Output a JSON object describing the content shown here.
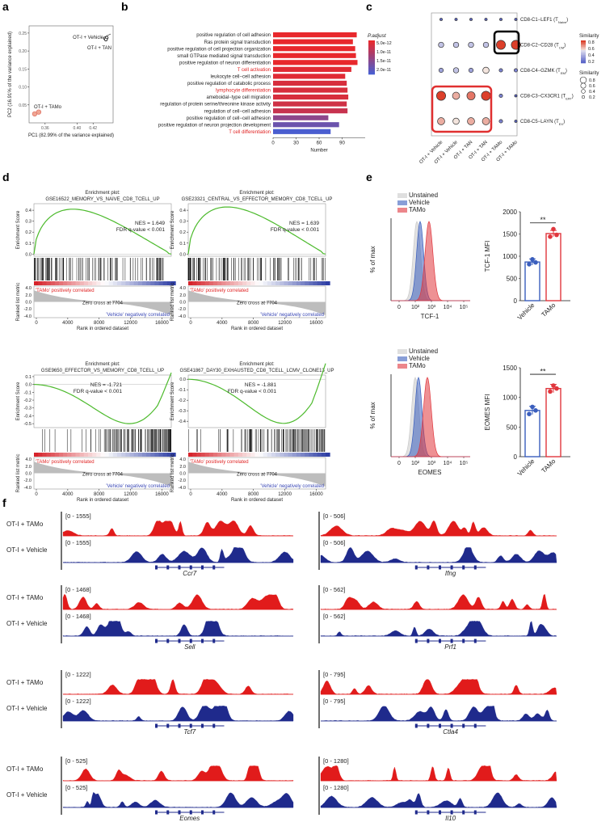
{
  "panel_labels": {
    "a": "a",
    "b": "b",
    "c": "c",
    "d": "d",
    "e": "e",
    "f": "f"
  },
  "chart_data": [
    {
      "panel": "a",
      "type": "scatter",
      "xlabel": "PC1 (82.99% of the variance explained)",
      "ylabel": "PC2 (16.91% of the variance explained)",
      "xticks": [
        "0.36",
        "0.40",
        "0.42"
      ],
      "yticks": [
        "0.25",
        "0.20",
        "0.15",
        "0.10",
        "0.05"
      ],
      "points": [
        {
          "label": "OT-I + Vehicle",
          "x": 0.435,
          "y": 0.235
        },
        {
          "label": "OT-I + Vehicle",
          "x": 0.437,
          "y": 0.237
        },
        {
          "label": "OT-I + TAN",
          "x": 0.436,
          "y": 0.232
        },
        {
          "label": "OT-I + TAMo",
          "x": 0.347,
          "y": 0.025
        },
        {
          "label": "OT-I + TAMo",
          "x": 0.352,
          "y": 0.03
        }
      ],
      "annotations": [
        "OT-I + Vehicle",
        "OT-I + TAN",
        "OT-I + TAMo"
      ]
    },
    {
      "panel": "b",
      "type": "bar",
      "xlabel": "Number",
      "xticks": [
        "0",
        "30",
        "60",
        "90"
      ],
      "legend_title": "P.adjust",
      "legend_ticks": [
        "5.0e-12",
        "1.0e-11",
        "1.5e-11",
        "2.0e-11"
      ],
      "categories": [
        "positive regulation of cell adhesion",
        "Ras protein signal transduction",
        "positive regulation of cell projection organization",
        "small GTPase mediated signal transduction",
        "positive regulation of neuron differentiation",
        "T cell activation",
        "leukocyte cell−cell adhesion",
        "positive regulation of catabolic process",
        "lymphocyte differentiation",
        "ameboidal−type cell migration",
        "regulation of protein serine/threonine kinase activity",
        "regulation of cell−cell adhesion",
        "positive regulation of cell−cell adhesion",
        "positive regulation of neuron projection development",
        "T cell differentiation"
      ],
      "values": [
        109,
        104,
        107,
        108,
        110,
        102,
        94,
        96,
        97,
        98,
        96,
        97,
        72,
        86,
        75
      ],
      "padjust": [
        1e-12,
        1e-12,
        1e-12,
        1e-12,
        1e-12,
        2e-12,
        2e-12,
        3e-12,
        3e-12,
        3e-12,
        4e-12,
        5e-12,
        1.2e-11,
        1.6e-11,
        2e-11
      ],
      "highlighted": [
        5,
        8,
        14
      ]
    },
    {
      "panel": "c",
      "type": "dot-matrix",
      "columns": [
        "OT-I + Vehicle",
        "OT-I + Vehicle",
        "OT-I + TAN",
        "OT-I + TAN",
        "OT-I + TAMo",
        "OT-I + TAMo"
      ],
      "rows": [
        "CD8-C1−LEF1 (T",
        "CD8-C2−CD28 (T",
        "CD8-C4−GZMK (T",
        "CD8-C3−CX3CR1 (T",
        "CD8-C5−LAYN (T"
      ],
      "row_subs": [
        "Naive",
        "CM",
        "EM",
        "EFF",
        "EX"
      ],
      "similarity": [
        [
          0.1,
          0.1,
          0.1,
          0.1,
          0.1,
          0.1
        ],
        [
          0.4,
          0.4,
          0.4,
          0.4,
          0.8,
          0.8
        ],
        [
          0.3,
          0.4,
          0.3,
          0.5,
          0.2,
          0.2
        ],
        [
          0.8,
          0.6,
          0.7,
          0.8,
          0.2,
          0.1
        ],
        [
          0.6,
          0.5,
          0.6,
          0.6,
          0.2,
          0.1
        ]
      ],
      "legend_color_title": "Similarity",
      "legend_color_ticks": [
        "0.8",
        "0.6",
        "0.4",
        "0.2"
      ],
      "legend_size_title": "Similarity",
      "legend_size_ticks": [
        "0.8",
        "0.6",
        "0.4",
        "0.2"
      ]
    },
    {
      "panel": "d",
      "type": "gsea",
      "plots": [
        {
          "title1": "Enrichment plot:",
          "title2": "GSE16522_MEMORY_VS_NAIVE_CD8_TCELL_UP",
          "nes": "NES = 1.649",
          "fdr": "FDR q-value < 0.001",
          "yticks": [
            "0.4",
            "0.3",
            "0.2",
            "0.1",
            "0.0"
          ],
          "ymin": -0.02,
          "ymax": 0.46,
          "peak": 0.41,
          "direction": "up"
        },
        {
          "title1": "Enrichment plot:",
          "title2": "GSE23321_CENTRAL_VS_EFFECTOR_MEMORY_CD8_TCELL_UP",
          "nes": "NES = 1.639",
          "fdr": "FDR q-value < 0.001",
          "yticks": [
            "0.4",
            "0.3",
            "0.2",
            "0.1",
            "0.0"
          ],
          "ymin": -0.02,
          "ymax": 0.46,
          "peak": 0.43,
          "direction": "up"
        },
        {
          "title1": "Enrichment plot:",
          "title2": "GSE9650_EFFECTOR_VS_MEMORY_CD8_TCELL_UP",
          "nes": "NES = -1.721",
          "fdr": "FDR q-value < 0.001",
          "yticks": [
            "0.1",
            "0.0",
            "-0.1",
            "-0.2",
            "-0.3",
            "-0.4",
            "-0.5"
          ],
          "ymin": -0.55,
          "ymax": 0.12,
          "peak": -0.5,
          "direction": "down"
        },
        {
          "title1": "Enrichment plot:",
          "title2": "GSE41867_DAY30_EXHAUSTED_CD8_TCELL_LCMV_CLONE13_UP",
          "nes": "NES = -1.881",
          "fdr": "FDR q-value < 0.001",
          "yticks": [
            "0.0",
            "-0.1",
            "-0.2",
            "-0.3",
            "-0.4"
          ],
          "ymin": -0.46,
          "ymax": 0.04,
          "peak": -0.42,
          "direction": "down"
        }
      ],
      "pos_label": "'TAMo' positively correlated",
      "neg_label": "'Vehicle' negatively correlated",
      "zero_cross": "Zero cross at 7704",
      "xlabel": "Rank in ordered dataset",
      "ylabel_top": "Enrichment Score",
      "ylabel_bottom": "Ranked list metric",
      "xticks": [
        "0",
        "4000",
        "8000",
        "12000",
        "16000"
      ],
      "rank_yticks": [
        "4.0",
        "2.0",
        "0.0",
        "-2.0",
        "-4.0"
      ]
    },
    {
      "panel": "e",
      "type": "flow-and-bar",
      "legend": [
        "Unstained",
        "Vehicle",
        "TAMo"
      ],
      "legend_colors": [
        "#c9c9c9",
        "#3a5ebd",
        "#e0363d"
      ],
      "ylabel": "% of max",
      "xticks": [
        "0",
        "10²",
        "10³",
        "10⁴",
        "10⁵"
      ],
      "markers": [
        "TCF-1",
        "EOMES"
      ],
      "bars": [
        {
          "ylabel": "TCF-1 MFI",
          "yticks": [
            "2000",
            "1500",
            "1000",
            "500",
            "0"
          ],
          "ymax": 2000,
          "categories": [
            "Vehicle",
            "TAMo"
          ],
          "values": [
            870,
            1510
          ],
          "points": [
            [
              820,
              930,
              860
            ],
            [
              1440,
              1610,
              1480
            ]
          ],
          "sig": "**"
        },
        {
          "ylabel": "EOMES MFI",
          "yticks": [
            "1500",
            "1000",
            "500",
            "0"
          ],
          "ymax": 1500,
          "categories": [
            "Vehicle",
            "TAMo"
          ],
          "values": [
            780,
            1150
          ],
          "points": [
            [
              720,
              840,
              780
            ],
            [
              1100,
              1200,
              1150
            ]
          ],
          "sig": "**"
        }
      ]
    },
    {
      "panel": "f",
      "type": "genome-tracks",
      "track_labels": [
        "OT-I + TAMo",
        "OT-I + Vehicle"
      ],
      "genes": [
        {
          "name": "Ccr7",
          "range": "[0 - 1555]"
        },
        {
          "name": "Ifng",
          "range": "[0 - 506]"
        },
        {
          "name": "Sell",
          "range": "[0 - 1468]"
        },
        {
          "name": "Prf1",
          "range": "[0 - 562]"
        },
        {
          "name": "Tcf7",
          "range": "[0 - 1222]"
        },
        {
          "name": "Ctla4",
          "range": "[0 - 795]"
        },
        {
          "name": "Eomes",
          "range": "[0 - 525]"
        },
        {
          "name": "Il10",
          "range": "[0 - 1280]"
        }
      ]
    }
  ]
}
